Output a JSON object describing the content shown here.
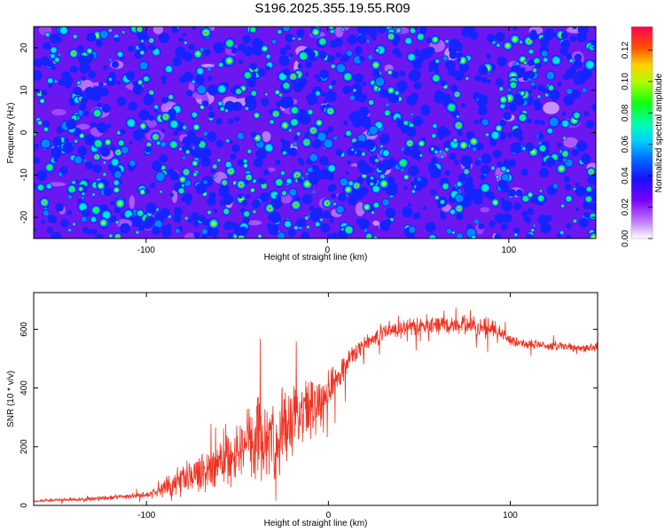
{
  "title": "S196.2025.355.19.55.R09",
  "chart_data": [
    {
      "type": "heatmap",
      "xlabel": "Height of straight line (km)",
      "ylabel": "Frequency (Hz)",
      "xlim": [
        -162,
        148
      ],
      "ylim": [
        -25,
        25
      ],
      "xticks": [
        -100,
        0,
        100
      ],
      "xtick_labels": [
        "-100",
        "0",
        "100"
      ],
      "yticks": [
        -20,
        -10,
        0,
        10,
        20
      ],
      "ytick_labels": [
        "-20",
        "-10",
        "0",
        "10",
        "20"
      ],
      "colorbar": {
        "label": "Normalized spectral amplitude",
        "range": [
          0,
          0.135
        ],
        "ticks": [
          0,
          0.02,
          0.04,
          0.06,
          0.08,
          0.1,
          0.12
        ],
        "tick_labels": [
          "0.00",
          "0.02",
          "0.04",
          "0.06",
          "0.08",
          "0.10",
          "0.12"
        ]
      },
      "field": {
        "description_mode": "noise-like speckle field",
        "typical_value": 0.03,
        "peak_value": 0.13
      }
    },
    {
      "type": "line",
      "xlabel": "Height of straight line (km)",
      "ylabel": "SNR (10 * v/v)",
      "xlim": [
        -162,
        148
      ],
      "ylim": [
        0,
        725
      ],
      "xticks": [
        -100,
        0,
        100
      ],
      "xtick_labels": [
        "-100",
        "0",
        "100"
      ],
      "yticks": [
        0,
        200,
        400,
        600
      ],
      "ytick_labels": [
        "0",
        "200",
        "400",
        "600"
      ],
      "color": "#ee3322",
      "series": [
        {
          "name": "SNR",
          "x": [
            -162,
            -150,
            -140,
            -130,
            -120,
            -110,
            -100,
            -95,
            -90,
            -85,
            -80,
            -75,
            -70,
            -65,
            -60,
            -55,
            -50,
            -45,
            -40,
            -35,
            -30,
            -25,
            -20,
            -15,
            -10,
            -5,
            0,
            5,
            10,
            15,
            20,
            25,
            30,
            35,
            40,
            50,
            60,
            70,
            80,
            90,
            95,
            100,
            110,
            120,
            130,
            140,
            148
          ],
          "y": [
            15,
            18,
            20,
            22,
            28,
            30,
            35,
            45,
            60,
            75,
            85,
            100,
            110,
            125,
            150,
            170,
            190,
            200,
            215,
            230,
            240,
            250,
            270,
            300,
            330,
            360,
            400,
            440,
            480,
            520,
            550,
            570,
            590,
            600,
            605,
            610,
            612,
            615,
            610,
            605,
            590,
            560,
            550,
            545,
            540,
            535,
            540
          ],
          "noise_amplitude": [
            6,
            6,
            7,
            8,
            10,
            12,
            14,
            20,
            35,
            50,
            60,
            70,
            80,
            95,
            110,
            130,
            150,
            165,
            180,
            180,
            170,
            160,
            150,
            140,
            130,
            110,
            90,
            70,
            55,
            45,
            35,
            35,
            35,
            35,
            35,
            35,
            35,
            35,
            40,
            40,
            30,
            22,
            20,
            20,
            18,
            18,
            18
          ]
        }
      ]
    }
  ]
}
